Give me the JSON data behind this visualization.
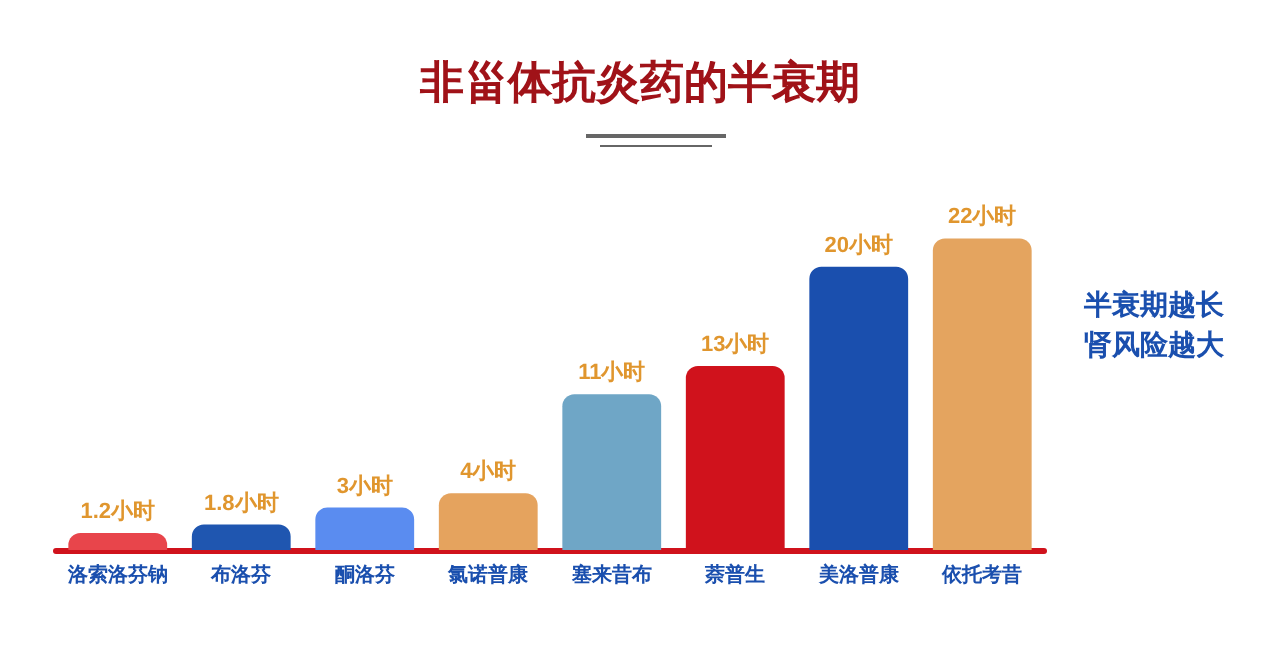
{
  "chart_data": {
    "type": "bar",
    "title": "非甾体抗炎药的半衰期",
    "categories": [
      "洛索洛芬钠",
      "布洛芬",
      "酮洛芬",
      "氯诺普康",
      "塞来昔布",
      "萘普生",
      "美洛普康",
      "依托考昔"
    ],
    "values": [
      1.2,
      1.8,
      3,
      4,
      11,
      13,
      20,
      22
    ],
    "value_labels": [
      "1.2小时",
      "1.8小时",
      "3小时",
      "4小时",
      "11小时",
      "13小时",
      "20小时",
      "22小时"
    ],
    "colors": [
      "#e8454b",
      "#1f56b0",
      "#5a8cf0",
      "#e5a35e",
      "#6fa6c6",
      "#d0121c",
      "#1a4fae",
      "#e4a45f"
    ],
    "annotations": [
      "半衰期越长肾风险越大"
    ],
    "grid": false
  }
}
